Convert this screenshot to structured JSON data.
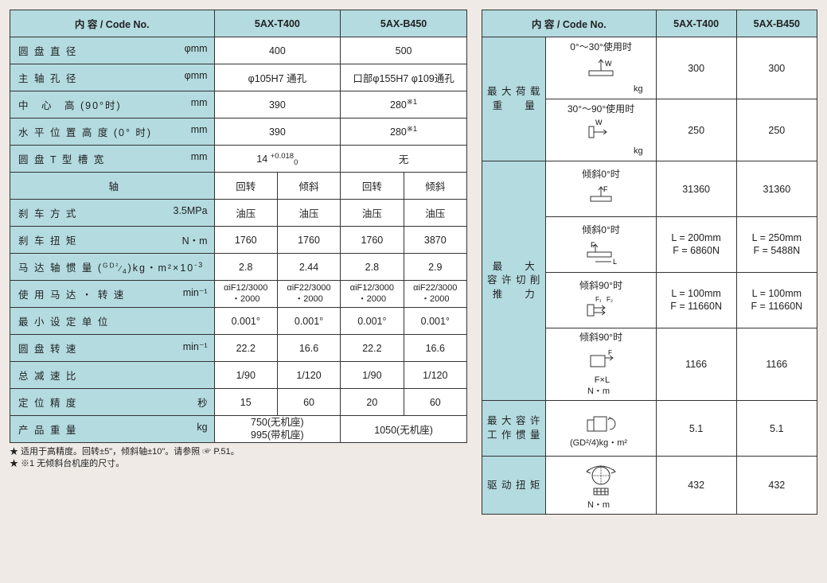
{
  "left": {
    "header": {
      "label": "内 容 / Code No.",
      "c1": "5AX-T400",
      "c2": "5AX-B450"
    },
    "rows": [
      {
        "label": "圆 盘 直 径",
        "unit": "φmm",
        "v1": "400",
        "v2": "500",
        "span": 2
      },
      {
        "label": "主 轴 孔 径",
        "unit": "φmm",
        "v1": "φ105H7 通孔",
        "v2": "口部φ155H7 φ109通孔",
        "span": 2
      },
      {
        "label": "中　心　高 (90°时)",
        "unit": "mm",
        "v1": "390",
        "v2": "280※1",
        "span": 2,
        "sup2": true
      },
      {
        "label": "水 平 位 置 高 度 (0° 时)",
        "unit": "mm",
        "v1": "390",
        "v2": "280※1",
        "span": 2,
        "sup2": true
      },
      {
        "label": "圆 盘 T 型 槽 宽",
        "unit": "mm",
        "v1": "14 +0.018 / 0",
        "v2": "无",
        "span": 2,
        "tol": true
      }
    ],
    "axis_row": {
      "label": "轴",
      "c1": "回转",
      "c2": "倾斜",
      "c3": "回转",
      "c4": "倾斜"
    },
    "rows4": [
      {
        "label": "刹 车 方 式",
        "unit": "3.5MPa",
        "a": "油压",
        "b": "油压",
        "c": "油压",
        "d": "油压"
      },
      {
        "label": "刹 车 扭 矩",
        "unit": "N・m",
        "a": "1760",
        "b": "1760",
        "c": "1760",
        "d": "3870"
      },
      {
        "label": "马 达 轴 惯 量 (GD²/4)kg・m²×10⁻³",
        "unit": "",
        "a": "2.8",
        "b": "2.44",
        "c": "2.8",
        "d": "2.9",
        "long": true
      },
      {
        "label": "使 用 马 达 ・ 转 速",
        "unit": "min⁻¹",
        "a": "αiF12/3000\n・2000",
        "b": "αiF22/3000\n・2000",
        "c": "αiF12/3000\n・2000",
        "d": "αiF22/3000\n・2000",
        "multi": true
      },
      {
        "label": "最 小 设 定 单 位",
        "unit": "",
        "a": "0.001°",
        "b": "0.001°",
        "c": "0.001°",
        "d": "0.001°"
      },
      {
        "label": "圆 盘 转 速",
        "unit": "min⁻¹",
        "a": "22.2",
        "b": "16.6",
        "c": "22.2",
        "d": "16.6"
      },
      {
        "label": "总 减 速 比",
        "unit": "",
        "a": "1/90",
        "b": "1/120",
        "c": "1/90",
        "d": "1/120"
      },
      {
        "label": "定 位 精 度",
        "unit": "秒",
        "a": "15",
        "b": "60",
        "c": "20",
        "d": "60"
      }
    ],
    "weight": {
      "label": "产 品 重 量",
      "unit": "kg",
      "v1a": "750(无机座)",
      "v1b": "995(带机座)",
      "v2": "1050(无机座)"
    },
    "notes": [
      "★ 适用于高精度。回转±5\"，倾斜轴±10\"。请参照 ☞ P.51。",
      "★ ※1 无倾斜台机座的尺寸。"
    ]
  },
  "right": {
    "header": {
      "label": "内 容 / Code No.",
      "c1": "5AX-T400",
      "c2": "5AX-B450"
    },
    "groups": [
      {
        "vlabel": "最 大 荷 载\n重　　量",
        "rows": [
          {
            "desc": "0°～30°使用时",
            "dia": "load1",
            "kg": "kg",
            "v1": "300",
            "v2": "300"
          },
          {
            "desc": "30°～90°使用时",
            "dia": "load2",
            "kg": "kg",
            "v1": "250",
            "v2": "250"
          }
        ]
      },
      {
        "vlabel": "最　　大\n容 许 切 削\n推　　力",
        "rows": [
          {
            "desc": "倾斜0°时",
            "dia": "f1",
            "v1": "31360",
            "v2": "31360"
          },
          {
            "desc": "倾斜0°时",
            "dia": "fl",
            "v1": "L = 200mm\nF = 6860N",
            "v2": "L = 250mm\nF = 5488N",
            "multi": true
          },
          {
            "desc": "倾斜90°时",
            "dia": "f2",
            "v1": "L = 100mm\nF = 11660N",
            "v2": "L = 100mm\nF = 11660N",
            "multi": true
          },
          {
            "desc": "倾斜90°时",
            "dia": "fxl",
            "sub": "F×L\nN・m",
            "v1": "1166",
            "v2": "1166"
          }
        ]
      },
      {
        "vlabel": "最 大 容 许\n工 作 惯 量",
        "rows": [
          {
            "desc": "",
            "dia": "inertia",
            "sub": "(GD²/4)kg・m²",
            "v1": "5.1",
            "v2": "5.1"
          }
        ]
      },
      {
        "vlabel": "驱 动 扭 矩",
        "rows": [
          {
            "desc": "",
            "dia": "torque",
            "sub": "N・m",
            "v1": "432",
            "v2": "432"
          }
        ]
      }
    ]
  }
}
